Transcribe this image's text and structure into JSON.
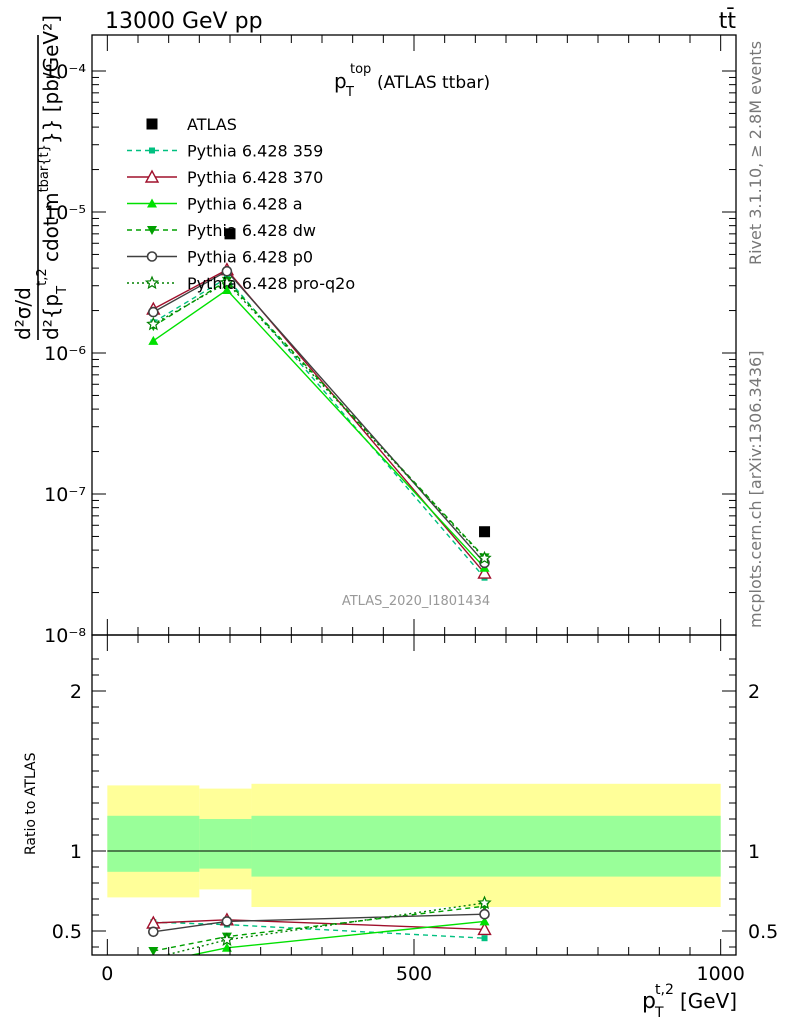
{
  "header": {
    "energy_label": "13000 GeV pp",
    "process_label": "tt̄"
  },
  "side": {
    "rivet_label": "Rivet 3.1.10, ≥ 2.8M events",
    "mcplots_label": "mcplots.cern.ch [arXiv:1306.3436]"
  },
  "analysis_id": "ATLAS_2020_I1801434",
  "chart_data": [
    {
      "type": "line",
      "title": "p_T^top (ATLAS ttbar)",
      "ylabel": "d²σ/d{p_T^t,2 cdot m^tbar{t}} [pb/GeV²]",
      "ylabel_parts": {
        "frac_top": "d²σ/d",
        "frac_bottom_main": "d²{p",
        "sub_T": "T",
        "sup_t2": "t,2",
        "cdot_m": " cdot m",
        "sup_tbar": "tbar{t}",
        "close": "}}",
        "units": " [pb/GeV²]"
      },
      "yscale": "log",
      "ylim": [
        1e-08,
        0.00018
      ],
      "xlim": [
        -25,
        1025
      ],
      "y_ticks": [
        "10⁻⁸",
        "10⁻⁷",
        "10⁻⁶",
        "10⁻⁵",
        "10⁻⁴"
      ],
      "legend_position": "top-left",
      "series": [
        {
          "name": "ATLAS",
          "color": "#000000",
          "style": "data",
          "x": [
            200,
            615
          ],
          "y": [
            7e-06,
            5.4e-08
          ]
        },
        {
          "name": "Pythia 6.428 359",
          "color": "#00c080",
          "style": "dashed",
          "marker": "square-small",
          "x": [
            75,
            195,
            615
          ],
          "y": [
            1.65e-06,
            3.4e-06,
            2.55e-08
          ]
        },
        {
          "name": "Pythia 6.428 370",
          "color": "#a0102c",
          "style": "solid",
          "marker": "triangle-open",
          "x": [
            75,
            195,
            615
          ],
          "y": [
            2.05e-06,
            3.9e-06,
            2.75e-08
          ]
        },
        {
          "name": "Pythia 6.428 a",
          "color": "#00e000",
          "style": "solid",
          "marker": "triangle",
          "x": [
            75,
            195,
            615
          ],
          "y": [
            1.22e-06,
            2.8e-06,
            3e-08
          ]
        },
        {
          "name": "Pythia 6.428 dw",
          "color": "#00a000",
          "style": "dashed",
          "marker": "triangle-down",
          "x": [
            75,
            195,
            615
          ],
          "y": [
            1.55e-06,
            3.25e-06,
            3.55e-08
          ]
        },
        {
          "name": "Pythia 6.428 p0",
          "color": "#404040",
          "style": "solid",
          "marker": "circle-open",
          "x": [
            75,
            195,
            615
          ],
          "y": [
            1.95e-06,
            3.8e-06,
            3.25e-08
          ]
        },
        {
          "name": "Pythia 6.428 pro-q2o",
          "color": "#008000",
          "style": "dotted",
          "marker": "star-open",
          "x": [
            75,
            195,
            615
          ],
          "y": [
            1.6e-06,
            3.15e-06,
            3.5e-08
          ]
        }
      ]
    },
    {
      "type": "line",
      "ylabel": "Ratio to ATLAS",
      "xlabel": "p_T^t,2 [GeV]",
      "xlabel_parts": {
        "main": "p",
        "sub": "T",
        "sup": "t,2",
        "units": " [GeV]"
      },
      "ylim": [
        0.35,
        2.35
      ],
      "xlim": [
        -25,
        1025
      ],
      "y_ticks": [
        "0.5",
        "1",
        "2"
      ],
      "x_ticks": [
        "0",
        "500",
        "1000"
      ],
      "bands": {
        "bins": [
          [
            0,
            150
          ],
          [
            150,
            235
          ],
          [
            235,
            1000
          ]
        ],
        "stat_syst_yellow": [
          [
            0.71,
            1.41
          ],
          [
            0.76,
            1.39
          ],
          [
            0.65,
            1.42
          ]
        ],
        "stat_green": [
          [
            0.87,
            1.22
          ],
          [
            0.89,
            1.2
          ],
          [
            0.84,
            1.22
          ]
        ]
      },
      "series": [
        {
          "name": "Pythia 6.428 359",
          "x": [
            75,
            195,
            615
          ],
          "y": [
            0.555,
            0.54,
            0.455
          ]
        },
        {
          "name": "Pythia 6.428 370",
          "x": [
            75,
            195,
            615
          ],
          "y": [
            0.55,
            0.57,
            0.51
          ]
        },
        {
          "name": "Pythia 6.428 a",
          "x": [
            75,
            195,
            615
          ],
          "y": [
            0.3,
            0.395,
            0.56
          ]
        },
        {
          "name": "Pythia 6.428 dw",
          "x": [
            75,
            195,
            615
          ],
          "y": [
            0.375,
            0.465,
            0.655
          ]
        },
        {
          "name": "Pythia 6.428 p0",
          "x": [
            75,
            195,
            615
          ],
          "y": [
            0.495,
            0.56,
            0.605
          ]
        },
        {
          "name": "Pythia 6.428 pro-q2o",
          "x": [
            75,
            195,
            615
          ],
          "y": [
            0.33,
            0.445,
            0.675
          ]
        }
      ]
    }
  ]
}
